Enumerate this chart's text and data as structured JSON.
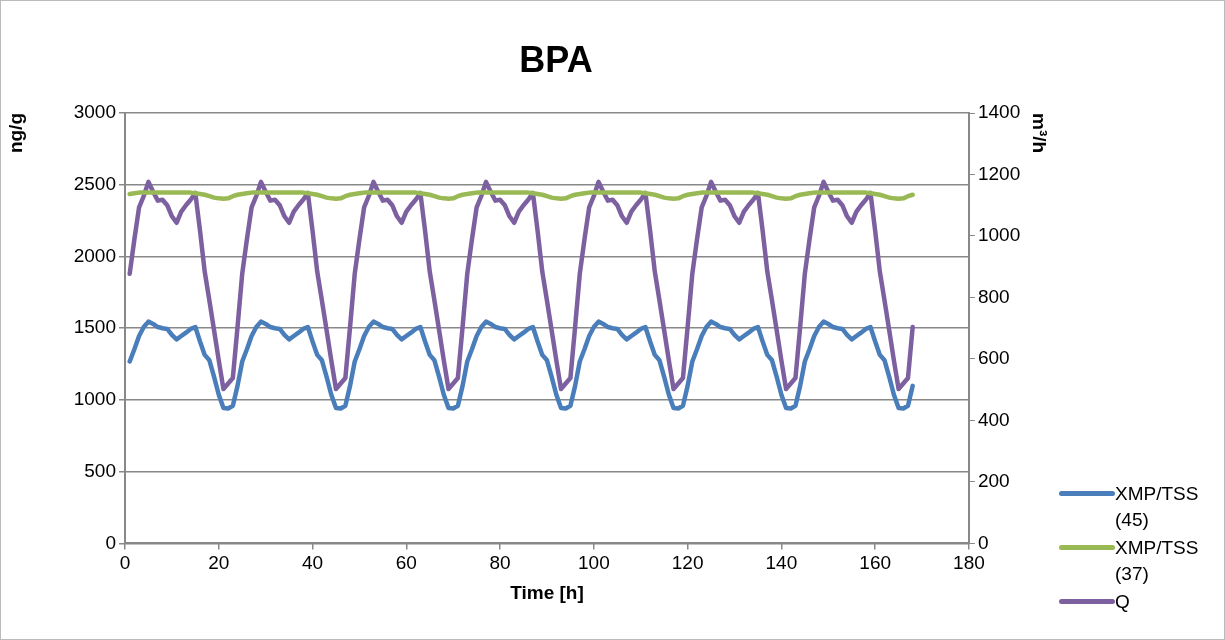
{
  "chart_data": {
    "type": "line",
    "title": "BPA",
    "xlabel": "Time [h]",
    "ylabel": "ng/g",
    "y2label": "m³/h",
    "x": [
      1,
      2,
      3,
      4,
      5,
      6,
      7,
      8,
      9,
      10,
      11,
      12,
      13,
      14,
      15,
      16,
      17,
      18,
      19,
      20,
      21,
      22,
      23,
      24,
      25,
      26,
      27,
      28,
      29,
      30,
      31,
      32,
      33,
      34,
      35,
      36,
      37,
      38,
      39,
      40,
      41,
      42,
      43,
      44,
      45,
      46,
      47,
      48,
      49,
      50,
      51,
      52,
      53,
      54,
      55,
      56,
      57,
      58,
      59,
      60,
      61,
      62,
      63,
      64,
      65,
      66,
      67,
      68,
      69,
      70,
      71,
      72,
      73,
      74,
      75,
      76,
      77,
      78,
      79,
      80,
      81,
      82,
      83,
      84,
      85,
      86,
      87,
      88,
      89,
      90,
      91,
      92,
      93,
      94,
      95,
      96,
      97,
      98,
      99,
      100,
      101,
      102,
      103,
      104,
      105,
      106,
      107,
      108,
      109,
      110,
      111,
      112,
      113,
      114,
      115,
      116,
      117,
      118,
      119,
      120,
      121,
      122,
      123,
      124,
      125,
      126,
      127,
      128,
      129,
      130,
      131,
      132,
      133,
      134,
      135,
      136,
      137,
      138,
      139,
      140,
      141,
      142,
      143,
      144,
      145,
      146,
      147,
      148,
      149,
      150,
      151,
      152,
      153,
      154,
      155,
      156,
      157,
      158,
      159,
      160,
      161,
      162,
      163,
      164,
      165,
      166,
      167,
      168
    ],
    "series": [
      {
        "name": "XMP/TSS (45)",
        "color": "#4a7ebb",
        "values": [
          1268,
          1353,
          1446,
          1508,
          1546,
          1530,
          1508,
          1500,
          1495,
          1453,
          1422,
          1446,
          1469,
          1495,
          1508,
          1407,
          1314,
          1276,
          1160,
          1036,
          943,
          940,
          959,
          1098,
          1268,
          1353,
          1446,
          1508,
          1546,
          1530,
          1508,
          1500,
          1495,
          1453,
          1422,
          1446,
          1469,
          1495,
          1508,
          1407,
          1314,
          1276,
          1160,
          1036,
          943,
          940,
          959,
          1098,
          1268,
          1353,
          1446,
          1508,
          1546,
          1530,
          1508,
          1500,
          1495,
          1453,
          1422,
          1446,
          1469,
          1495,
          1508,
          1407,
          1314,
          1276,
          1160,
          1036,
          943,
          940,
          959,
          1098,
          1268,
          1353,
          1446,
          1508,
          1546,
          1530,
          1508,
          1500,
          1495,
          1453,
          1422,
          1446,
          1469,
          1495,
          1508,
          1407,
          1314,
          1276,
          1160,
          1036,
          943,
          940,
          959,
          1098,
          1268,
          1353,
          1446,
          1508,
          1546,
          1530,
          1508,
          1500,
          1495,
          1453,
          1422,
          1446,
          1469,
          1495,
          1508,
          1407,
          1314,
          1276,
          1160,
          1036,
          943,
          940,
          959,
          1098,
          1268,
          1353,
          1446,
          1508,
          1546,
          1530,
          1508,
          1500,
          1495,
          1453,
          1422,
          1446,
          1469,
          1495,
          1508,
          1407,
          1314,
          1276,
          1160,
          1036,
          943,
          940,
          959,
          1098,
          1268,
          1353,
          1446,
          1508,
          1546,
          1530,
          1508,
          1500,
          1495,
          1453,
          1422,
          1446,
          1469,
          1495,
          1508,
          1407,
          1314,
          1276,
          1160,
          1036,
          943,
          940,
          959,
          1098
        ]
      },
      {
        "name": "XMP/TSS (37)",
        "color": "#98b954",
        "values": [
          2435,
          2440,
          2445,
          2445,
          2445,
          2445,
          2445,
          2445,
          2445,
          2445,
          2445,
          2445,
          2445,
          2445,
          2440,
          2435,
          2430,
          2420,
          2410,
          2405,
          2403,
          2405,
          2420,
          2430,
          2435,
          2440,
          2445,
          2445,
          2445,
          2445,
          2445,
          2445,
          2445,
          2445,
          2445,
          2445,
          2445,
          2445,
          2440,
          2435,
          2430,
          2420,
          2410,
          2405,
          2403,
          2405,
          2420,
          2430,
          2435,
          2440,
          2445,
          2445,
          2445,
          2445,
          2445,
          2445,
          2445,
          2445,
          2445,
          2445,
          2445,
          2445,
          2440,
          2435,
          2430,
          2420,
          2410,
          2405,
          2403,
          2405,
          2420,
          2430,
          2435,
          2440,
          2445,
          2445,
          2445,
          2445,
          2445,
          2445,
          2445,
          2445,
          2445,
          2445,
          2445,
          2445,
          2440,
          2435,
          2430,
          2420,
          2410,
          2405,
          2403,
          2405,
          2420,
          2430,
          2435,
          2440,
          2445,
          2445,
          2445,
          2445,
          2445,
          2445,
          2445,
          2445,
          2445,
          2445,
          2445,
          2445,
          2440,
          2435,
          2430,
          2420,
          2410,
          2405,
          2403,
          2405,
          2420,
          2430,
          2435,
          2440,
          2445,
          2445,
          2445,
          2445,
          2445,
          2445,
          2445,
          2445,
          2445,
          2445,
          2445,
          2445,
          2440,
          2435,
          2430,
          2420,
          2410,
          2405,
          2403,
          2405,
          2420,
          2430,
          2435,
          2440,
          2445,
          2445,
          2445,
          2445,
          2445,
          2445,
          2445,
          2445,
          2445,
          2445,
          2445,
          2445,
          2440,
          2435,
          2430,
          2420,
          2410,
          2405,
          2403,
          2405,
          2420,
          2430
        ]
      },
      {
        "name": "Q",
        "color": "#7d60a0",
        "axis": "y2",
        "values": [
          877,
          989,
          1093,
          1130,
          1176,
          1144,
          1115,
          1118,
          1100,
          1064,
          1043,
          1079,
          1100,
          1118,
          1140,
          1017,
          884,
          790,
          693,
          595,
          502,
          520,
          538,
          704,
          877,
          989,
          1093,
          1130,
          1176,
          1144,
          1115,
          1118,
          1100,
          1064,
          1043,
          1079,
          1100,
          1118,
          1140,
          1017,
          884,
          790,
          693,
          595,
          502,
          520,
          538,
          704,
          877,
          989,
          1093,
          1130,
          1176,
          1144,
          1115,
          1118,
          1100,
          1064,
          1043,
          1079,
          1100,
          1118,
          1140,
          1017,
          884,
          790,
          693,
          595,
          502,
          520,
          538,
          704,
          877,
          989,
          1093,
          1130,
          1176,
          1144,
          1115,
          1118,
          1100,
          1064,
          1043,
          1079,
          1100,
          1118,
          1140,
          1017,
          884,
          790,
          693,
          595,
          502,
          520,
          538,
          704,
          877,
          989,
          1093,
          1130,
          1176,
          1144,
          1115,
          1118,
          1100,
          1064,
          1043,
          1079,
          1100,
          1118,
          1140,
          1017,
          884,
          790,
          693,
          595,
          502,
          520,
          538,
          704,
          877,
          989,
          1093,
          1130,
          1176,
          1144,
          1115,
          1118,
          1100,
          1064,
          1043,
          1079,
          1100,
          1118,
          1140,
          1017,
          884,
          790,
          693,
          595,
          502,
          520,
          538,
          704,
          877,
          989,
          1093,
          1130,
          1176,
          1144,
          1115,
          1118,
          1100,
          1064,
          1043,
          1079,
          1100,
          1118,
          1140,
          1017,
          884,
          790,
          693,
          595,
          502,
          520,
          538,
          704
        ]
      }
    ],
    "xlim": [
      0,
      180
    ],
    "xticks": [
      0,
      20,
      40,
      60,
      80,
      100,
      120,
      140,
      160,
      180
    ],
    "ylim": [
      0,
      3000
    ],
    "yticks": [
      0,
      500,
      1000,
      1500,
      2000,
      2500,
      3000
    ],
    "y2lim": [
      0,
      1400
    ],
    "y2ticks": [
      0,
      200,
      400,
      600,
      800,
      1000,
      1200,
      1400
    ],
    "grid": "y",
    "legend": "right",
    "marker": "none",
    "line_style": "solid"
  }
}
